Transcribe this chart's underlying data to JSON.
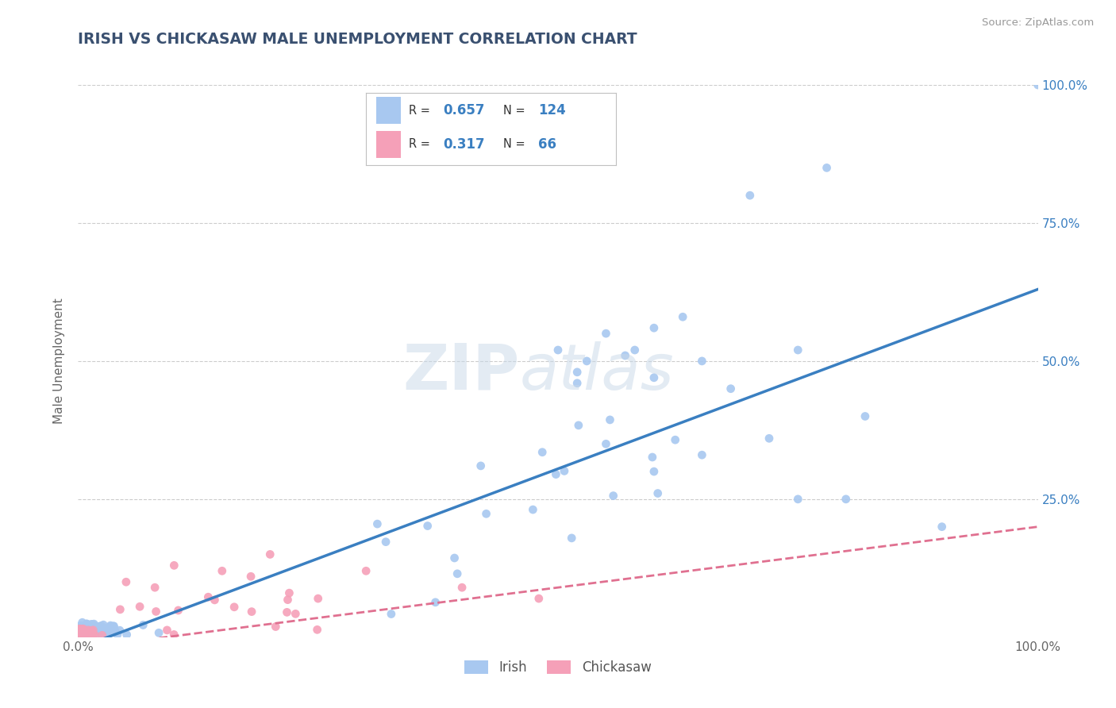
{
  "title": "IRISH VS CHICKASAW MALE UNEMPLOYMENT CORRELATION CHART",
  "source_text": "Source: ZipAtlas.com",
  "ylabel": "Male Unemployment",
  "R_irish": 0.657,
  "N_irish": 124,
  "R_chickasaw": 0.317,
  "N_chickasaw": 66,
  "irish_color": "#a8c8f0",
  "chickasaw_color": "#f5a0b8",
  "irish_line_color": "#3a7fc1",
  "chickasaw_line_color": "#e07090",
  "title_color": "#3a5070",
  "background_color": "#ffffff",
  "grid_color": "#cccccc",
  "xlim": [
    0.0,
    1.0
  ],
  "ylim": [
    0.0,
    1.0
  ],
  "irish_slope": 0.65,
  "irish_intercept": -0.02,
  "chick_slope": 0.22,
  "chick_intercept": -0.02
}
